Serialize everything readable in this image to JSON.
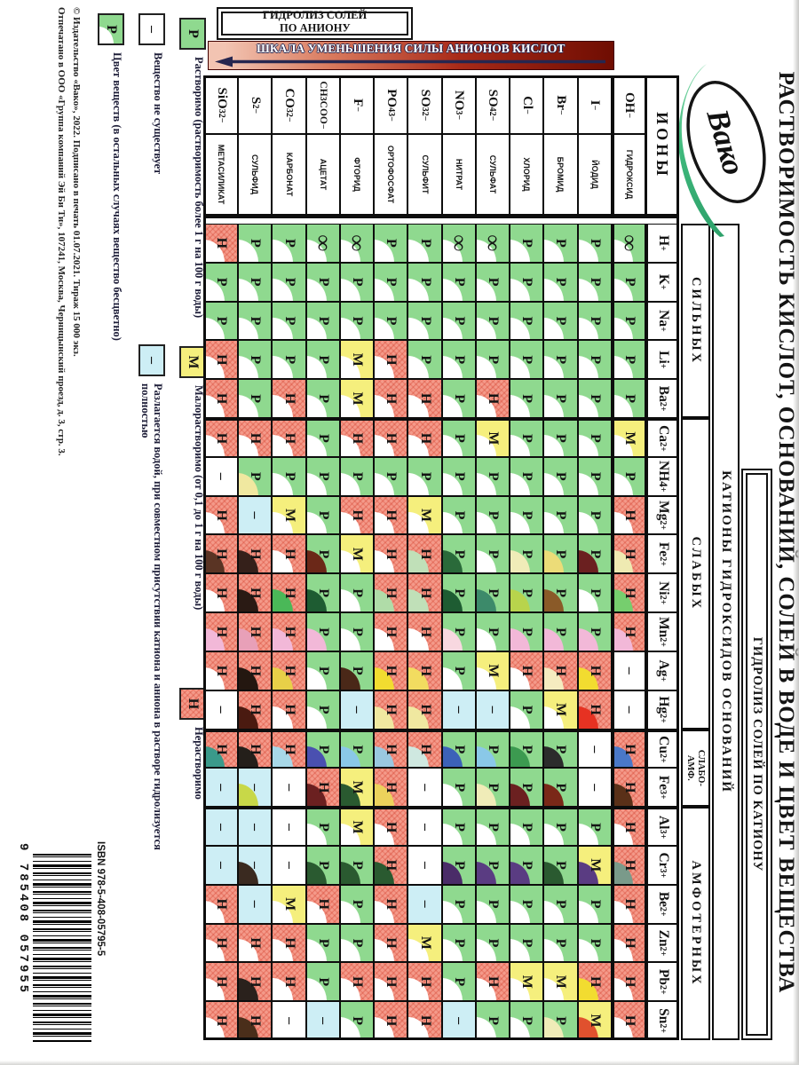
{
  "title": "РАСТВОРИМОСТЬ КИСЛОТ, ОСНОВАНИЙ, СОЛЕЙ В ВОДЕ И ЦВЕТ ВЕЩЕСТВА",
  "logo": {
    "text": "Вако"
  },
  "headers": {
    "hydrolysis_anion": "ГИДРОЛИЗ СОЛЕЙ\nПО АНИОНУ",
    "scale": "ШКАЛА УМЕНЬШЕНИЯ СИЛЫ АНИОНОВ КИСЛОТ",
    "hydrolysis_cation": "ГИДРОЛИЗ СОЛЕЙ ПО КАТИОНУ",
    "cations_band": "КАТИОНЫ ГИДРОКСИДОВ ОСНОВАНИЙ",
    "ions": "ИОНЫ"
  },
  "groups": [
    {
      "label": "СИЛЬНЫХ",
      "span": 5,
      "small": false
    },
    {
      "label": "СЛАБЫХ",
      "span": 8,
      "small": false
    },
    {
      "label": "СЛАБО-\nАМФ.",
      "span": 2,
      "small": true
    },
    {
      "label": "АМФОТЕРНЫХ",
      "span": 6,
      "small": false
    }
  ],
  "cations": [
    "H^+",
    "K^+",
    "Na^+",
    "Li^+",
    "Ba^2+",
    "Ca^2+",
    "NH_4^+",
    "Mg^2+",
    "Fe^2+",
    "Ni^2+",
    "Mn^2+",
    "Ag^+",
    "Hg^2+",
    "Cu^2+",
    "Fe^3+",
    "Al^3+",
    "Cr^3+",
    "Be^2+",
    "Zn^2+",
    "Pb^2+",
    "Sn^2+"
  ],
  "legend_values": {
    "soluble": "Р",
    "slightly": "М",
    "insoluble": "Н",
    "none": "–",
    "infinite": "∞"
  },
  "anions": [
    {
      "f": "OH^−",
      "name": "ГИДРОКСИД",
      "v": [
        "∞",
        "Р",
        "Р",
        "Р",
        "Р",
        "М",
        "Р",
        "Н",
        "Н",
        "Н",
        "Н",
        "–",
        "–",
        "Н",
        "Н",
        "Н",
        "Н",
        "Н",
        "Н",
        "Н",
        "Н"
      ],
      "c": {
        "8": "#efeab2",
        "9": "#76ce6e",
        "10": "#f2b8d8",
        "13": "#4a78c8",
        "14": "#5a3018",
        "16": "#7a9a8a"
      }
    },
    {
      "f": "I^−",
      "name": "ЙОДИД",
      "v": [
        "Р",
        "Р",
        "Р",
        "Р",
        "Р",
        "Р",
        "Р",
        "Р",
        "Р",
        "Р",
        "Р",
        "Н",
        "Н",
        "–",
        "–",
        "Р",
        "М",
        "Р",
        "Р",
        "Н",
        "М"
      ],
      "c": {
        "8": "#6b2020",
        "10": "#f2b8d8",
        "11": "#f2dc30",
        "12": "#e63222",
        "16": "#5a3c82",
        "19": "#f2dc30",
        "20": "#e0512e"
      }
    },
    {
      "f": "Br^−",
      "name": "БРОМИД",
      "v": [
        "Р",
        "Р",
        "Р",
        "Р",
        "Р",
        "Р",
        "Р",
        "Р",
        "Р",
        "Р",
        "Р",
        "Н",
        "М",
        "Р",
        "Р",
        "Р",
        "Р",
        "Р",
        "Р",
        "М",
        "Р"
      ],
      "c": {
        "8": "#ecdc78",
        "9": "#8a5a28",
        "10": "#f2b8d8",
        "11": "#f5ecc0",
        "13": "#2c2c2c",
        "14": "#7a2818",
        "16": "#2a5a30",
        "20": "#f0ecb8"
      }
    },
    {
      "f": "Cl^−",
      "name": "ХЛОРИД",
      "v": [
        "Р",
        "Р",
        "Р",
        "Р",
        "Р",
        "Р",
        "Р",
        "Р",
        "Р",
        "Р",
        "Р",
        "Н",
        "Р",
        "Р",
        "Р",
        "Р",
        "Р",
        "Р",
        "Р",
        "М",
        "Р"
      ],
      "c": {
        "8": "#f0ecb8",
        "9": "#b8d44c",
        "10": "#f2b8d8",
        "13": "#3c9a50",
        "14": "#6b2020",
        "16": "#5a3c82"
      }
    },
    {
      "f": "SO_4^2−",
      "name": "СУЛЬФАТ",
      "v": [
        "∞",
        "Р",
        "Р",
        "Р",
        "Н",
        "М",
        "Р",
        "Р",
        "Р",
        "Р",
        "Р",
        "М",
        "–b",
        "Р",
        "Р",
        "Р",
        "Р",
        "Р",
        "Р",
        "Н",
        "Р"
      ],
      "c": {
        "9": "#3c8a6a",
        "13": "#8ac8e8",
        "14": "#f0ecb8",
        "16": "#5a3c82"
      }
    },
    {
      "f": "NO_3^−",
      "name": "НИТРАТ",
      "v": [
        "∞",
        "Р",
        "Р",
        "Р",
        "Р",
        "Р",
        "Р",
        "Р",
        "Р",
        "Р",
        "Р",
        "Р",
        "–b",
        "Р",
        "Р",
        "Р",
        "Р",
        "Р",
        "Р",
        "Р",
        "–b"
      ],
      "c": {
        "8": "#2a6a3a",
        "9": "#1e5c32",
        "10": "#f8d8e0",
        "13": "#3c62b8",
        "16": "#4a2c68"
      }
    },
    {
      "f": "SO_3^2−",
      "name": "СУЛЬФИТ",
      "v": [
        "Р",
        "Р",
        "Р",
        "Р",
        "Н",
        "Н",
        "Р",
        "М",
        "Н",
        "Н",
        "Н",
        "Н",
        "Н",
        "Н",
        "–",
        "–",
        "–",
        "–b",
        "М",
        "Н",
        "Н"
      ],
      "c": {
        "8": "#c0e0b8",
        "9": "#c0e0b8",
        "11": "#f2dc60",
        "12": "#f0e8a0",
        "13": "#cfe8e0"
      }
    },
    {
      "f": "PO_4^3−",
      "name": "ОРТОФОСФАТ",
      "v": [
        "Р",
        "Р",
        "Р",
        "Н",
        "Н",
        "Н",
        "Р",
        "Н",
        "Н",
        "Н",
        "Н",
        "Н",
        "Н",
        "Н",
        "Н",
        "Н",
        "Н",
        "Н",
        "Н",
        "Н",
        "Н"
      ],
      "c": {
        "9": "#b0dca8",
        "11": "#f2dc30",
        "12": "#f0e8a0",
        "13": "#9ac8e0",
        "14": "#ecd25c",
        "16": "#2a5a30"
      }
    },
    {
      "f": "F^−",
      "name": "ФТОРИД",
      "v": [
        "∞",
        "Р",
        "Р",
        "М",
        "М",
        "Н",
        "Р",
        "Н",
        "М",
        "Р",
        "Р",
        "Р",
        "–b",
        "Р",
        "М",
        "М",
        "Р",
        "Р",
        "Р",
        "Н",
        "Р"
      ],
      "c": {
        "11": "#4a2818",
        "13": "#8ac8e8",
        "14": "#2a5a30",
        "16": "#2a5a30"
      }
    },
    {
      "f": "CH_3COO^−",
      "name": "АЦЕТАТ",
      "v": [
        "∞",
        "Р",
        "Р",
        "Р",
        "Р",
        "Р",
        "Р",
        "Р",
        "Р",
        "Р",
        "Р",
        "Р",
        "Р",
        "Р",
        "Н",
        "Р",
        "Р",
        "Н",
        "Р",
        "Р",
        "–b"
      ],
      "c": {
        "8": "#6b2818",
        "9": "#1e5c32",
        "10": "#f2b8d8",
        "13": "#4a50b0",
        "14": "#6b2020",
        "16": "#2a5a30"
      }
    },
    {
      "f": "CO_3^2−",
      "name": "КАРБОНАТ",
      "v": [
        "Р",
        "Р",
        "Р",
        "Р",
        "Н",
        "Н",
        "Р",
        "М",
        "Н",
        "Н",
        "Н",
        "Н",
        "Н",
        "Н",
        "–",
        "–",
        "–",
        "М",
        "Н",
        "Н",
        "–"
      ],
      "c": {
        "9": "#4ab858",
        "10": "#f2b8d8",
        "11": "#e8d048",
        "13": "#a8d8e8"
      }
    },
    {
      "f": "S^2−",
      "name": "СУЛЬФИД",
      "v": [
        "Р",
        "Р",
        "Р",
        "Р",
        "Р",
        "Н",
        "Р",
        "–b",
        "Н",
        "Н",
        "Н",
        "Н",
        "Н",
        "Н",
        "–b",
        "–b",
        "–b",
        "–b",
        "Н",
        "Н",
        "Н"
      ],
      "c": {
        "6": "#f0e8a0",
        "8": "#35201a",
        "9": "#2a1a14",
        "10": "#e8a0b8",
        "11": "#241710",
        "12": "#4a1a10",
        "13": "#241f1a",
        "14": "#c8d848",
        "16": "#3a2a20",
        "19": "#2a211c",
        "20": "#4a2e1a"
      }
    },
    {
      "f": "SiO_3^2−",
      "name": "МЕТАСИЛИКАТ",
      "v": [
        "Н",
        "Р",
        "Р",
        "Н",
        "Н",
        "Н",
        "–",
        "Н",
        "Н",
        "Н",
        "Н",
        "Н",
        "–",
        "Н",
        "–b",
        "–b",
        "–b",
        "Н",
        "Н",
        "Н",
        "Н"
      ],
      "c": {
        "8": "#5a3424",
        "10": "#f2b8d8",
        "13": "#3a9a8a"
      }
    }
  ],
  "legend": {
    "rows": [
      {
        "sym": "Р",
        "bg": "g",
        "wedge": false,
        "text": "Растворимо (растворимость более 1 г на 100 г воды)"
      },
      {
        "sym": "М",
        "bg": "y",
        "wedge": false,
        "text": "Малорастворимо (от 0,1 до 1 г на 100 г воды)"
      },
      {
        "sym": "Н",
        "bg": "r",
        "wedge": false,
        "text": "Нерастворимо"
      },
      {
        "sym": "–",
        "bg": "wh",
        "wedge": false,
        "text": "Вещество не существует"
      },
      {
        "sym": "–",
        "bg": "b",
        "wedge": false,
        "text": "Разлагается водой, при совместном присутствии катиона и аниона в растворе гидролизуется полностью"
      },
      {
        "sym": "Р",
        "bg": "g",
        "wedge": true,
        "text": "Цвет веществ (в остальных случаях вещество бесцветно)"
      }
    ]
  },
  "imprint": {
    "line1": "© Издательство «Вако», 2022. Подписано в печать 01.07.2021. Тираж 15 000 экз.",
    "line2": "Отпечатано в ООО «Группа компаний Эй Би Ти», 107241, Москва, Черницынский проезд, д. 3, стр. 3."
  },
  "isbn": {
    "label": "ISBN 978-5-408-05795-5",
    "digits": "9 785408 057955"
  },
  "colors": {
    "soluble_green": "#8fd98f",
    "slightly_yellow": "#f5ef7d",
    "insoluble_red": "#f49a8a",
    "decomposes_blue": "#cdeef5",
    "scale_dark_red": "#6f0d02",
    "scale_light": "#f2c4b2",
    "arrow_navy": "#26264f",
    "leaf_green": "#3fb97c"
  }
}
